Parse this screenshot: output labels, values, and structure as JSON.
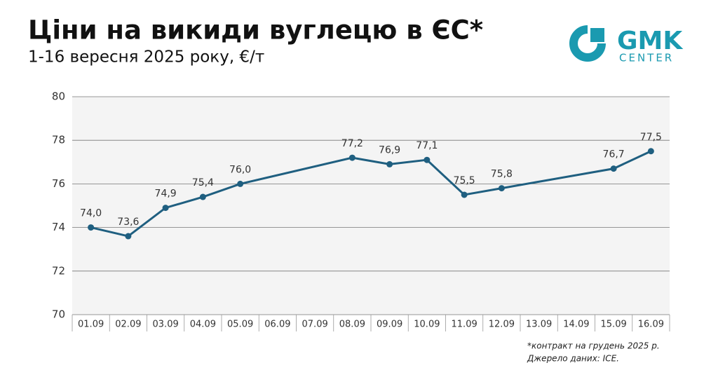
{
  "chart_data": {
    "type": "line",
    "title": "Ціни на викиди вуглецю в ЄС*",
    "subtitle": "1-16 вересня 2025 року, €/т",
    "logo": {
      "main": "GMK",
      "sub": "CENTER"
    },
    "footnotes": [
      "*контракт на грудень 2025 р.",
      "Джерело даних: ICE."
    ],
    "xticks": [
      "01.09",
      "02.09",
      "03.09",
      "04.09",
      "05.09",
      "06.09",
      "07.09",
      "08.09",
      "09.09",
      "10.09",
      "11.09",
      "12.09",
      "13.09",
      "14.09",
      "15.09",
      "16.09"
    ],
    "x": [
      "01.09",
      "02.09",
      "03.09",
      "04.09",
      "05.09",
      "08.09",
      "09.09",
      "10.09",
      "11.09",
      "12.09",
      "15.09",
      "16.09"
    ],
    "values": [
      74.0,
      73.6,
      74.9,
      75.4,
      76.0,
      77.2,
      76.9,
      77.1,
      75.5,
      75.8,
      76.7,
      77.5
    ],
    "value_labels": [
      "74,0",
      "73,6",
      "74,9",
      "75,4",
      "76,0",
      "77,2",
      "76,9",
      "77,1",
      "75,5",
      "75,8",
      "76,7",
      "77,5"
    ],
    "color": "#1f5f80",
    "ylim": [
      70,
      80
    ],
    "yticks": [
      70,
      72,
      74,
      76,
      78,
      80
    ],
    "grid": true
  }
}
